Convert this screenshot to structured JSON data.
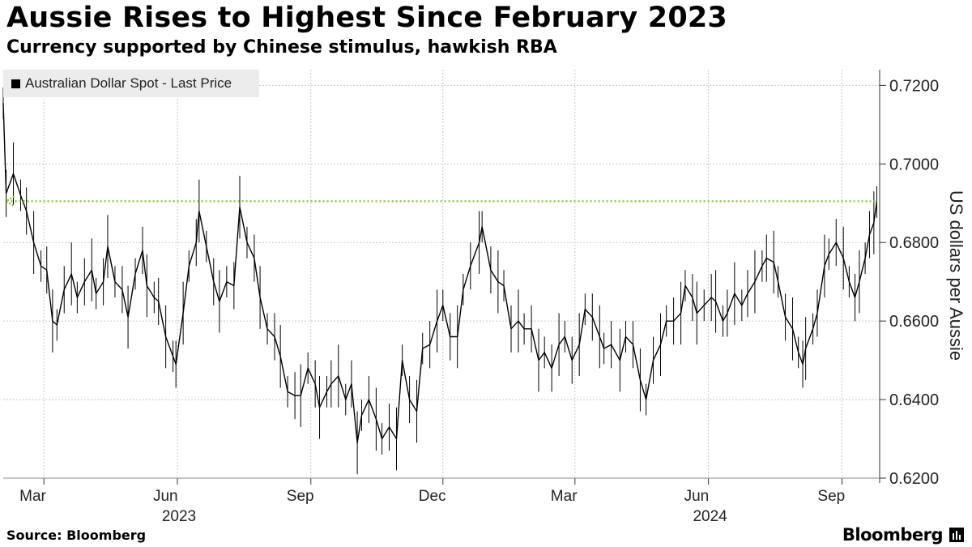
{
  "header": {
    "title": "Aussie Rises to Highest Since February 2023",
    "subtitle": "Currency supported by Chinese stimulus, hawkish RBA"
  },
  "legend": {
    "label": "Australian Dollar Spot - Last Price"
  },
  "footer": {
    "source": "Source: Bloomberg",
    "brand": "Bloomberg"
  },
  "colors": {
    "line": "#000000",
    "reference": "#8cc63f",
    "grid": "#c8c8c8",
    "legend_bg": "#ececec"
  },
  "chart_data": {
    "type": "line",
    "title": "Aussie Rises to Highest Since February 2023",
    "subtitle": "Currency supported by Chinese stimulus, hawkish RBA",
    "ylabel": "US dollars per Aussie",
    "ylim": [
      0.62,
      0.724
    ],
    "xlim": [
      "2023-02-01",
      "2024-09-27"
    ],
    "yticks": [
      "0.6200",
      "0.6400",
      "0.6600",
      "0.6800",
      "0.7000",
      "0.7200"
    ],
    "xticks": [
      {
        "date": "2023-03-01",
        "label": "Mar"
      },
      {
        "date": "2023-06-01",
        "label": "Jun"
      },
      {
        "date": "2023-09-01",
        "label": "Sep"
      },
      {
        "date": "2023-12-01",
        "label": "Dec"
      },
      {
        "date": "2024-03-01",
        "label": "Mar"
      },
      {
        "date": "2024-06-01",
        "label": "Jun"
      },
      {
        "date": "2024-09-01",
        "label": "Sep"
      }
    ],
    "year_labels": [
      {
        "date": "2023-06-01",
        "label": "2023"
      },
      {
        "date": "2024-06-01",
        "label": "2024"
      }
    ],
    "grid": true,
    "legend_position": "top-left",
    "reference_line": {
      "y": 0.6905,
      "from": "2023-02-03",
      "to": "2024-09-25",
      "style": "dotted",
      "arrow": "left"
    },
    "series": [
      {
        "name": "Australian Dollar Spot - Last Price",
        "points": [
          [
            "2023-02-01",
            0.7155
          ],
          [
            "2023-02-03",
            0.6925
          ],
          [
            "2023-02-08",
            0.6975
          ],
          [
            "2023-02-13",
            0.692
          ],
          [
            "2023-02-17",
            0.688
          ],
          [
            "2023-02-22",
            0.68
          ],
          [
            "2023-02-27",
            0.674
          ],
          [
            "2023-03-03",
            0.673
          ],
          [
            "2023-03-07",
            0.66
          ],
          [
            "2023-03-10",
            0.659
          ],
          [
            "2023-03-15",
            0.668
          ],
          [
            "2023-03-20",
            0.672
          ],
          [
            "2023-03-24",
            0.666
          ],
          [
            "2023-03-29",
            0.67
          ],
          [
            "2023-04-03",
            0.673
          ],
          [
            "2023-04-06",
            0.667
          ],
          [
            "2023-04-11",
            0.67
          ],
          [
            "2023-04-14",
            0.679
          ],
          [
            "2023-04-19",
            0.67
          ],
          [
            "2023-04-24",
            0.668
          ],
          [
            "2023-04-28",
            0.661
          ],
          [
            "2023-05-03",
            0.672
          ],
          [
            "2023-05-08",
            0.678
          ],
          [
            "2023-05-11",
            0.669
          ],
          [
            "2023-05-16",
            0.666
          ],
          [
            "2023-05-19",
            0.665
          ],
          [
            "2023-05-24",
            0.656
          ],
          [
            "2023-05-29",
            0.651
          ],
          [
            "2023-05-31",
            0.649
          ],
          [
            "2023-06-05",
            0.662
          ],
          [
            "2023-06-09",
            0.674
          ],
          [
            "2023-06-14",
            0.68
          ],
          [
            "2023-06-16",
            0.688
          ],
          [
            "2023-06-21",
            0.679
          ],
          [
            "2023-06-26",
            0.67
          ],
          [
            "2023-06-30",
            0.665
          ],
          [
            "2023-07-05",
            0.67
          ],
          [
            "2023-07-10",
            0.669
          ],
          [
            "2023-07-14",
            0.689
          ],
          [
            "2023-07-19",
            0.68
          ],
          [
            "2023-07-24",
            0.676
          ],
          [
            "2023-07-28",
            0.666
          ],
          [
            "2023-08-02",
            0.658
          ],
          [
            "2023-08-07",
            0.656
          ],
          [
            "2023-08-11",
            0.651
          ],
          [
            "2023-08-16",
            0.642
          ],
          [
            "2023-08-21",
            0.641
          ],
          [
            "2023-08-25",
            0.641
          ],
          [
            "2023-08-30",
            0.648
          ],
          [
            "2023-09-04",
            0.644
          ],
          [
            "2023-09-07",
            0.638
          ],
          [
            "2023-09-12",
            0.642
          ],
          [
            "2023-09-15",
            0.644
          ],
          [
            "2023-09-20",
            0.646
          ],
          [
            "2023-09-25",
            0.64
          ],
          [
            "2023-09-29",
            0.644
          ],
          [
            "2023-10-03",
            0.629
          ],
          [
            "2023-10-06",
            0.636
          ],
          [
            "2023-10-11",
            0.64
          ],
          [
            "2023-10-16",
            0.635
          ],
          [
            "2023-10-20",
            0.63
          ],
          [
            "2023-10-25",
            0.633
          ],
          [
            "2023-10-30",
            0.63
          ],
          [
            "2023-11-03",
            0.65
          ],
          [
            "2023-11-08",
            0.64
          ],
          [
            "2023-11-13",
            0.637
          ],
          [
            "2023-11-17",
            0.653
          ],
          [
            "2023-11-22",
            0.654
          ],
          [
            "2023-11-27",
            0.66
          ],
          [
            "2023-12-01",
            0.664
          ],
          [
            "2023-12-06",
            0.656
          ],
          [
            "2023-12-11",
            0.656
          ],
          [
            "2023-12-15",
            0.668
          ],
          [
            "2023-12-20",
            0.674
          ],
          [
            "2023-12-26",
            0.68
          ],
          [
            "2023-12-28",
            0.684
          ],
          [
            "2024-01-03",
            0.673
          ],
          [
            "2024-01-08",
            0.67
          ],
          [
            "2024-01-12",
            0.669
          ],
          [
            "2024-01-17",
            0.658
          ],
          [
            "2024-01-22",
            0.66
          ],
          [
            "2024-01-26",
            0.658
          ],
          [
            "2024-01-31",
            0.658
          ],
          [
            "2024-02-05",
            0.65
          ],
          [
            "2024-02-09",
            0.652
          ],
          [
            "2024-02-14",
            0.648
          ],
          [
            "2024-02-19",
            0.654
          ],
          [
            "2024-02-23",
            0.656
          ],
          [
            "2024-02-28",
            0.65
          ],
          [
            "2024-03-04",
            0.654
          ],
          [
            "2024-03-08",
            0.663
          ],
          [
            "2024-03-13",
            0.661
          ],
          [
            "2024-03-18",
            0.656
          ],
          [
            "2024-03-21",
            0.653
          ],
          [
            "2024-03-26",
            0.654
          ],
          [
            "2024-04-01",
            0.65
          ],
          [
            "2024-04-05",
            0.656
          ],
          [
            "2024-04-10",
            0.654
          ],
          [
            "2024-04-15",
            0.645
          ],
          [
            "2024-04-19",
            0.64
          ],
          [
            "2024-04-24",
            0.65
          ],
          [
            "2024-04-29",
            0.654
          ],
          [
            "2024-05-03",
            0.66
          ],
          [
            "2024-05-08",
            0.66
          ],
          [
            "2024-05-13",
            0.662
          ],
          [
            "2024-05-16",
            0.669
          ],
          [
            "2024-05-21",
            0.666
          ],
          [
            "2024-05-24",
            0.662
          ],
          [
            "2024-05-29",
            0.664
          ],
          [
            "2024-06-03",
            0.666
          ],
          [
            "2024-06-06",
            0.665
          ],
          [
            "2024-06-11",
            0.66
          ],
          [
            "2024-06-14",
            0.662
          ],
          [
            "2024-06-19",
            0.667
          ],
          [
            "2024-06-24",
            0.664
          ],
          [
            "2024-06-28",
            0.667
          ],
          [
            "2024-07-03",
            0.67
          ],
          [
            "2024-07-08",
            0.674
          ],
          [
            "2024-07-11",
            0.676
          ],
          [
            "2024-07-16",
            0.675
          ],
          [
            "2024-07-19",
            0.67
          ],
          [
            "2024-07-24",
            0.661
          ],
          [
            "2024-07-29",
            0.658
          ],
          [
            "2024-08-02",
            0.652
          ],
          [
            "2024-08-05",
            0.649
          ],
          [
            "2024-08-07",
            0.653
          ],
          [
            "2024-08-12",
            0.658
          ],
          [
            "2024-08-15",
            0.662
          ],
          [
            "2024-08-20",
            0.674
          ],
          [
            "2024-08-23",
            0.677
          ],
          [
            "2024-08-28",
            0.68
          ],
          [
            "2024-09-02",
            0.676
          ],
          [
            "2024-09-06",
            0.67
          ],
          [
            "2024-09-10",
            0.666
          ],
          [
            "2024-09-13",
            0.67
          ],
          [
            "2024-09-17",
            0.676
          ],
          [
            "2024-09-20",
            0.682
          ],
          [
            "2024-09-23",
            0.685
          ],
          [
            "2024-09-25",
            0.6903
          ]
        ]
      }
    ]
  }
}
